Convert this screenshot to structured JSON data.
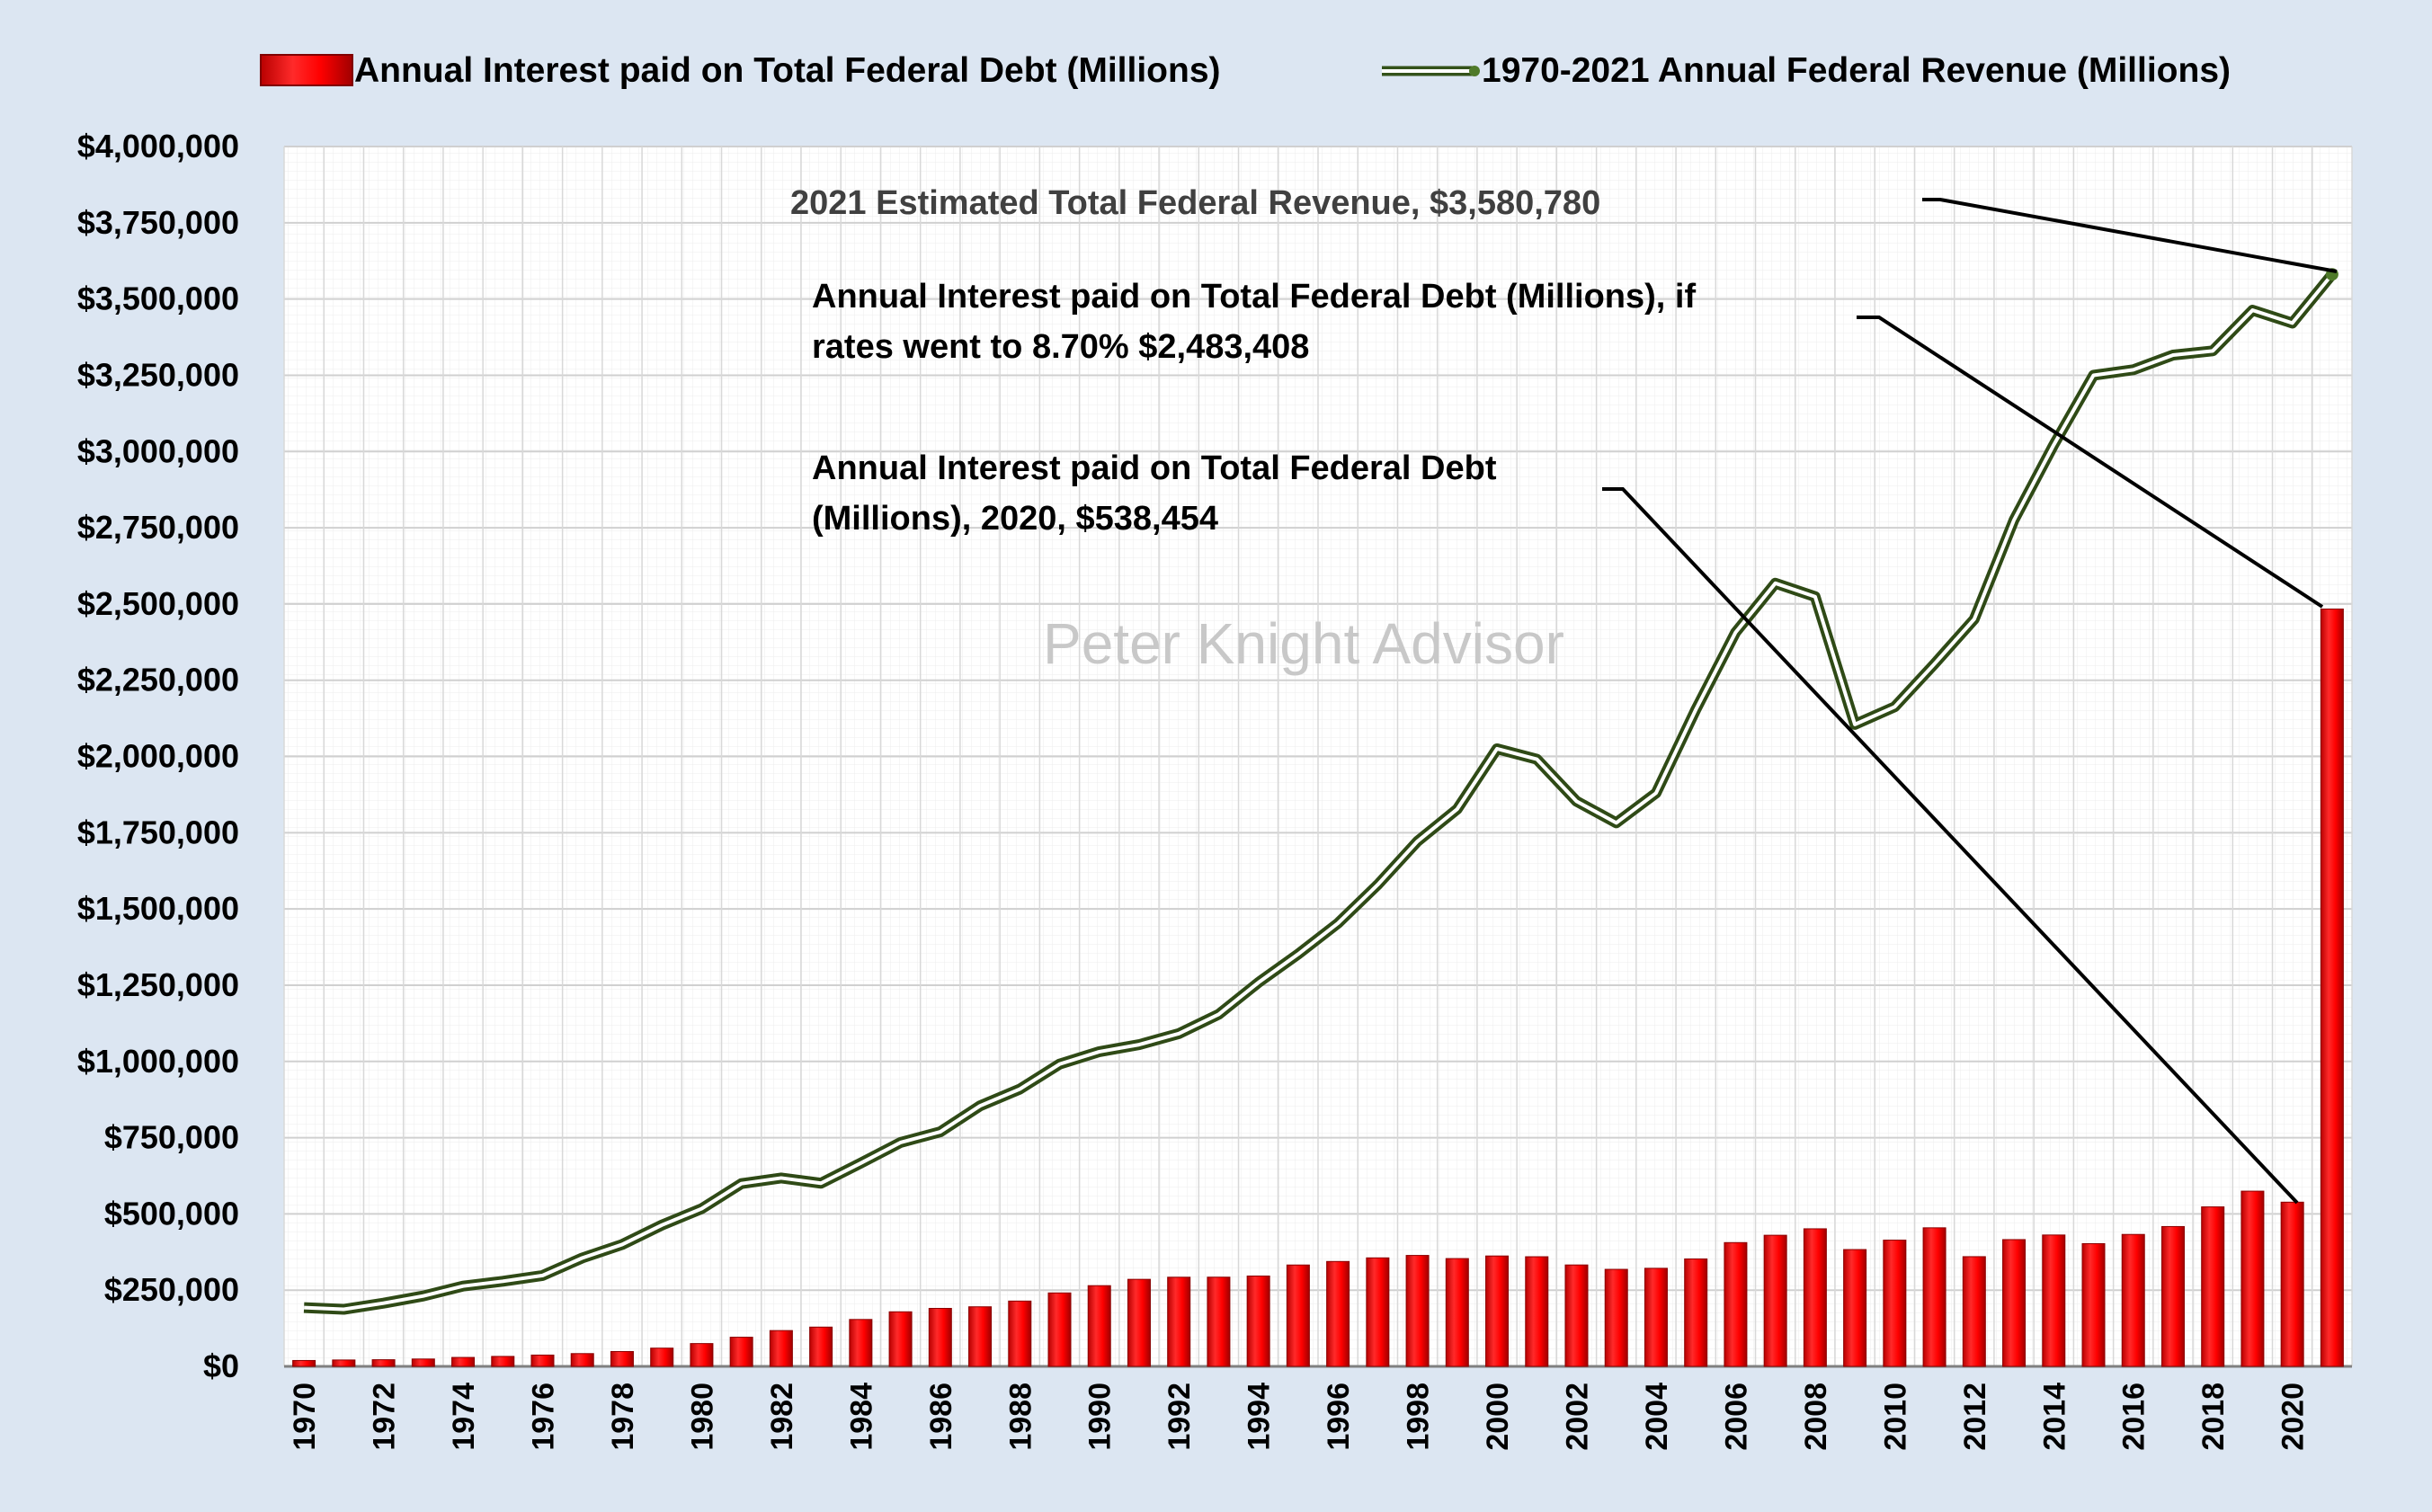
{
  "chart_data": {
    "type": "bar+line",
    "title": "",
    "xlabel": "",
    "ylabel": "",
    "ylim": [
      0,
      4000000
    ],
    "y_tick_step": 250000,
    "grid": true,
    "legend_position": "top",
    "watermark": "Peter Knight Advisor",
    "categories": [
      1970,
      1971,
      1972,
      1973,
      1974,
      1975,
      1976,
      1977,
      1978,
      1979,
      1980,
      1981,
      1982,
      1983,
      1984,
      1985,
      1986,
      1987,
      1988,
      1989,
      1990,
      1991,
      1992,
      1993,
      1994,
      1995,
      1996,
      1997,
      1998,
      1999,
      2000,
      2001,
      2002,
      2003,
      2004,
      2005,
      2006,
      2007,
      2008,
      2009,
      2010,
      2011,
      2012,
      2013,
      2014,
      2015,
      2016,
      2017,
      2018,
      2019,
      2020,
      2021
    ],
    "x_tick_labels": [
      "1970",
      "1972",
      "1974",
      "1976",
      "1978",
      "1980",
      "1982",
      "1984",
      "1986",
      "1988",
      "1990",
      "1992",
      "1994",
      "1996",
      "1998",
      "2000",
      "2002",
      "2004",
      "2006",
      "2008",
      "2010",
      "2012",
      "2014",
      "2016",
      "2018",
      "2020"
    ],
    "y_tick_labels": [
      "$0",
      "$250,000",
      "$500,000",
      "$750,000",
      "$1,000,000",
      "$1,250,000",
      "$1,500,000",
      "$1,750,000",
      "$2,000,000",
      "$2,250,000",
      "$2,500,000",
      "$2,750,000",
      "$3,000,000",
      "$3,250,000",
      "$3,500,000",
      "$3,750,000",
      "$4,000,000"
    ],
    "series": [
      {
        "name": "Annual Interest paid on Total  Federal Debt (Millions)",
        "type": "bar",
        "color": "#ff0000",
        "values": [
          19304,
          20959,
          21849,
          24167,
          29319,
          32665,
          37076,
          41915,
          48695,
          59856,
          74803,
          95589,
          117404,
          128813,
          153838,
          178945,
          190151,
          195390,
          214145,
          240863,
          264691,
          285454,
          292330,
          292502,
          296278,
          332414,
          343955,
          355796,
          363824,
          353511,
          361997,
          359508,
          332537,
          318149,
          321566,
          352350,
          405872,
          429978,
          451154,
          383071,
          413955,
          454393,
          359796,
          415689,
          430812,
          402435,
          432649,
          458542,
          523017,
          574553,
          538454,
          2483408
        ]
      },
      {
        "name": "1970-2021 Annual Federal Revenue (Millions)",
        "type": "line",
        "color": "#4f7a2a",
        "values": [
          192807,
          187139,
          207309,
          230799,
          263224,
          279090,
          298060,
          355559,
          399561,
          463302,
          517112,
          599272,
          617766,
          600562,
          666438,
          734037,
          769155,
          854288,
          909238,
          991104,
          1031958,
          1054988,
          1091208,
          1154335,
          1258566,
          1351790,
          1453053,
          1579232,
          1721728,
          1827452,
          2025191,
          1991082,
          1853136,
          1782314,
          1880114,
          2153611,
          2406869,
          2567985,
          2523991,
          2104989,
          2162706,
          2303466,
          2449988,
          2775103,
          3021487,
          3249887,
          3267961,
          3316182,
          3329907,
          3463364,
          3421164,
          3580780
        ]
      }
    ],
    "annotations": [
      {
        "text": "2021 Estimated Total Federal Revenue, $3,580,780"
      },
      {
        "lines": [
          "Annual Interest paid on Total  Federal Debt (Millions), if",
          "rates went to 8.70% $2,483,408"
        ]
      },
      {
        "lines": [
          "Annual Interest paid on Total  Federal Debt",
          "(Millions), 2020, $538,454"
        ]
      }
    ]
  }
}
